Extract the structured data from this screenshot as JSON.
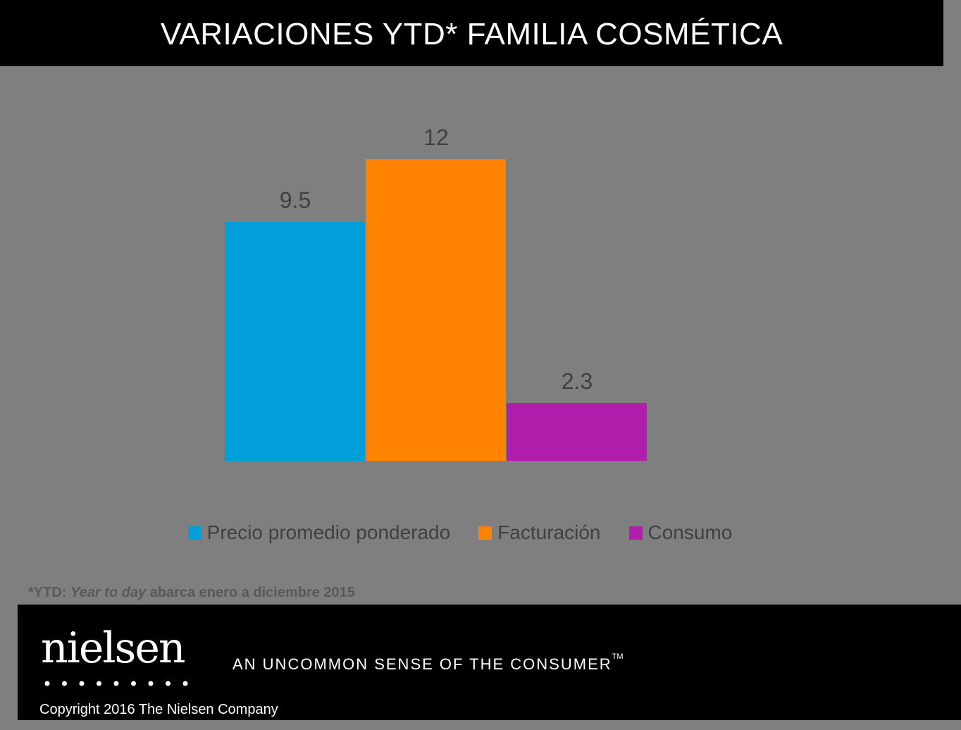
{
  "title": "VARIACIONES YTD* FAMILIA COSMÉTICA",
  "chart_data": {
    "type": "bar",
    "categories": [
      "Precio promedio ponderado",
      "Facturación",
      "Consumo"
    ],
    "values": [
      9.5,
      12,
      2.3
    ],
    "colors": [
      "#009fda",
      "#ff8200",
      "#b01eac"
    ],
    "data_labels": [
      "9.5",
      "12",
      "2.3"
    ],
    "ylim": [
      0,
      12
    ],
    "grid": false,
    "legend": "bottom"
  },
  "footnote": {
    "prefix": "*YTD: ",
    "italic": "Year to day",
    "suffix": " abarca enero a diciembre 2015"
  },
  "footer": {
    "logo": "nielsen",
    "tagline": "AN UNCOMMON SENSE OF THE CONSUMER",
    "trademark": "TM",
    "copyright": "Copyright 2016 The Nielsen Company"
  }
}
